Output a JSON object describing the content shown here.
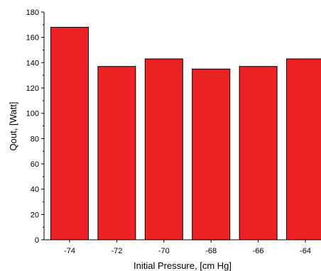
{
  "chart_data": {
    "type": "bar",
    "categories": [
      "-74",
      "-72",
      "-70",
      "-68",
      "-66",
      "-64"
    ],
    "values": [
      168,
      137,
      143,
      135,
      137,
      143
    ],
    "xlabel": "Initial Pressure, [cm Hg]",
    "ylabel": "Qout, [Watt]",
    "ylim": [
      0,
      180
    ],
    "yticks": [
      0,
      20,
      40,
      60,
      80,
      100,
      120,
      140,
      160,
      180
    ],
    "grid": false,
    "bar_color": "#ee2224"
  }
}
